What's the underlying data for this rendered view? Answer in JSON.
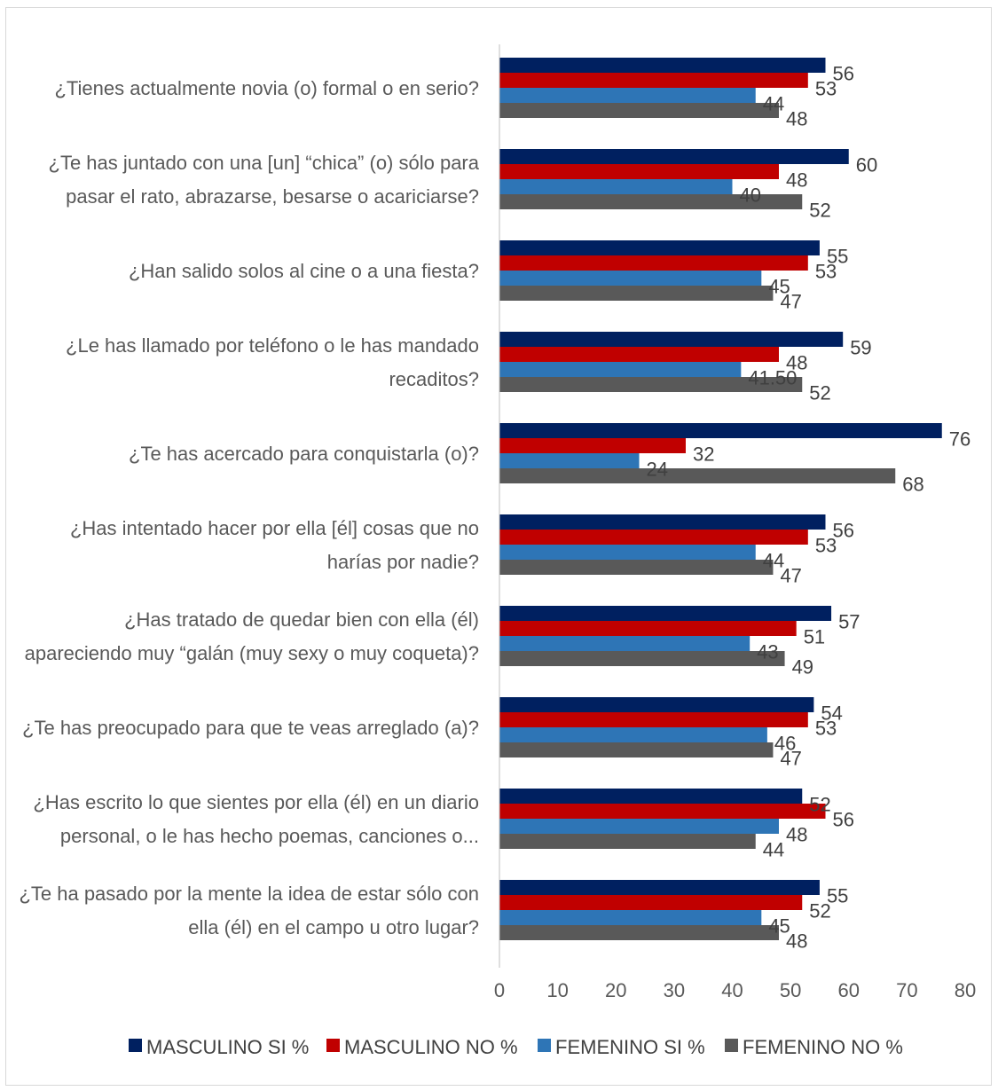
{
  "chart_data": {
    "type": "bar",
    "orientation": "horizontal",
    "categories": [
      [
        "¿Tienes actualmente novia (o) formal o en serio?"
      ],
      [
        "¿Te has juntado con una [un] “chica” (o) sólo para",
        "pasar el rato, abrazarse, besarse o acariciarse?"
      ],
      [
        "¿Han salido solos al cine o a una fiesta?"
      ],
      [
        "¿Le has llamado por teléfono o le has mandado",
        "recaditos?"
      ],
      [
        "¿Te has acercado para conquistarla (o)?"
      ],
      [
        "¿Has intentado hacer por ella [él] cosas que no",
        "harías por nadie?"
      ],
      [
        "¿Has tratado de quedar bien con ella (él)",
        "apareciendo muy “galán (muy sexy o muy coqueta)?"
      ],
      [
        "¿Te has preocupado para que te veas arreglado (a)?"
      ],
      [
        "¿Has escrito lo que sientes por ella (él) en un diario",
        "personal, o le has hecho poemas, canciones o..."
      ],
      [
        "¿Te ha pasado por la mente la idea de estar sólo con",
        "ella (él) en el campo u otro lugar?"
      ]
    ],
    "series": [
      {
        "name": "MASCULINO SI %",
        "color": "#002060",
        "values": [
          56,
          60,
          55,
          59,
          76,
          56,
          57,
          54,
          52,
          55
        ],
        "labels": [
          "56",
          "60",
          "55",
          "59",
          "76",
          "56",
          "57",
          "54",
          "52",
          "55"
        ]
      },
      {
        "name": "MASCULINO NO %",
        "color": "#C00000",
        "values": [
          53,
          48,
          53,
          48,
          32,
          53,
          51,
          53,
          56,
          52
        ],
        "labels": [
          "53",
          "48",
          "53",
          "48",
          "32",
          "53",
          "51",
          "53",
          "56",
          "52"
        ]
      },
      {
        "name": "FEMENINO SI %",
        "color": "#2E75B6",
        "values": [
          44,
          40,
          45,
          41.5,
          24,
          44,
          43,
          46,
          48,
          45
        ],
        "labels": [
          "44",
          "40",
          "45",
          "41.50",
          "24",
          "44",
          "43",
          "46",
          "48",
          "45"
        ]
      },
      {
        "name": "FEMENINO NO %",
        "color": "#595959",
        "values": [
          48,
          52,
          47,
          52,
          68,
          47,
          49,
          47,
          44,
          48
        ],
        "labels": [
          "48",
          "52",
          "47",
          "52",
          "68",
          "47",
          "49",
          "47",
          "44",
          "48"
        ]
      }
    ],
    "xlim": [
      0,
      80
    ],
    "xticks": [
      "0",
      "10",
      "20",
      "30",
      "40",
      "50",
      "60",
      "70",
      "80"
    ],
    "grid": false,
    "legend": "bottom"
  }
}
